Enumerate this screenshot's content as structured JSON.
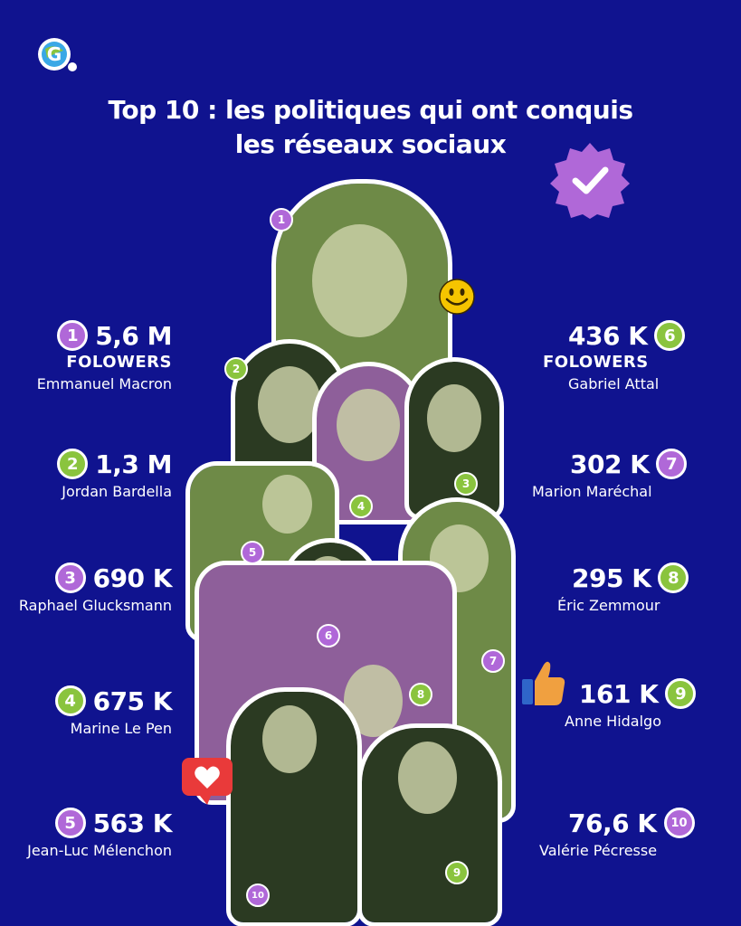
{
  "title": {
    "line1": "Top 10 : les politiques qui ont conquis",
    "line2": "les réseaux sociaux"
  },
  "icons": {
    "logo": "g-logo-icon",
    "verified": "verified-badge-icon",
    "smiley": "smiley-icon",
    "thumb": "thumbs-up-icon",
    "heart": "heart-icon"
  },
  "colors": {
    "background": "#10138f",
    "purple": "#b068d8",
    "green": "#8ac43e",
    "yellow": "#f5c400",
    "red": "#e93a3a"
  },
  "ranking": [
    {
      "rank": "1",
      "value": "5,6 M",
      "followers": "FOLOWERS",
      "name": "Emmanuel Macron",
      "color": "purple"
    },
    {
      "rank": "2",
      "value": "1,3 M",
      "name": "Jordan Bardella",
      "color": "green"
    },
    {
      "rank": "3",
      "value": "690 K",
      "name": "Raphael Glucksmann",
      "color": "purple"
    },
    {
      "rank": "4",
      "value": "675 K",
      "name": "Marine Le Pen",
      "color": "green"
    },
    {
      "rank": "5",
      "value": "563 K",
      "name": "Jean-Luc Mélenchon",
      "color": "purple"
    },
    {
      "rank": "6",
      "value": "436 K",
      "followers": "FOLOWERS",
      "name": "Gabriel Attal",
      "color": "green"
    },
    {
      "rank": "7",
      "value": "302 K",
      "name": "Marion Maréchal",
      "color": "purple"
    },
    {
      "rank": "8",
      "value": "295 K",
      "name": "Éric Zemmour",
      "color": "green"
    },
    {
      "rank": "9",
      "value": "161 K",
      "name": "Anne Hidalgo",
      "color": "green"
    },
    {
      "rank": "10",
      "value": "76,6 K",
      "name": "Valérie Pécresse",
      "color": "purple"
    }
  ],
  "photo_numbers": [
    "1",
    "2",
    "3",
    "4",
    "5",
    "6",
    "7",
    "8",
    "9",
    "10"
  ]
}
